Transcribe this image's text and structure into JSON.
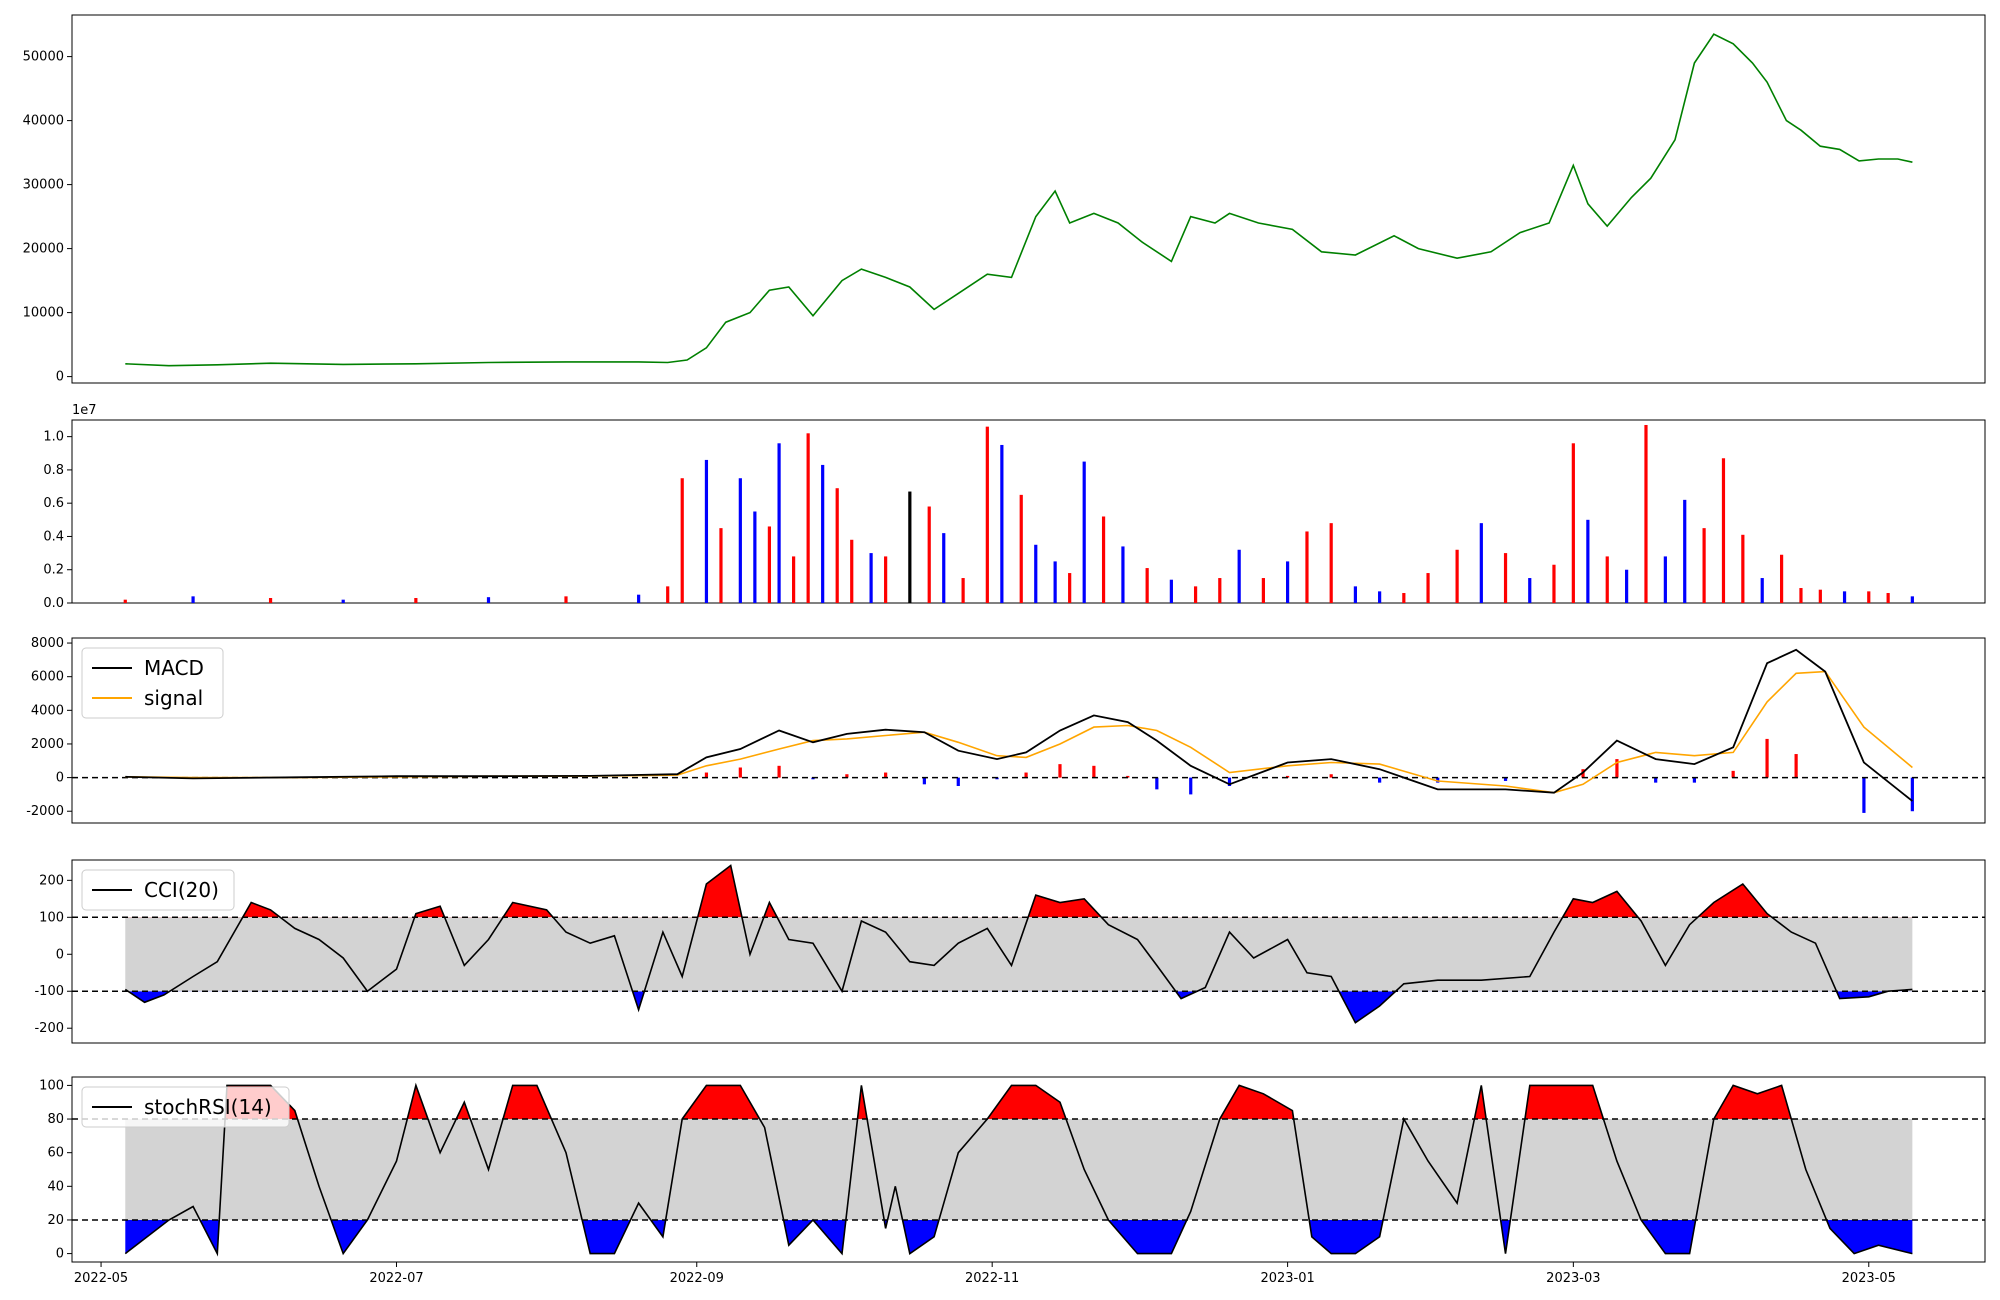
{
  "chart_data": [
    {
      "panel": "price",
      "type": "line",
      "ylim": [
        -1000,
        56500
      ],
      "yticks": [
        0,
        10000,
        20000,
        30000,
        40000,
        50000
      ],
      "colors": {
        "line": "#008000"
      },
      "x": [
        "2022-05-06",
        "2022-05-15",
        "2022-05-25",
        "2022-06-05",
        "2022-06-20",
        "2022-07-05",
        "2022-07-20",
        "2022-08-05",
        "2022-08-20",
        "2022-08-26",
        "2022-08-30",
        "2022-09-03",
        "2022-09-07",
        "2022-09-12",
        "2022-09-16",
        "2022-09-20",
        "2022-09-25",
        "2022-10-01",
        "2022-10-05",
        "2022-10-10",
        "2022-10-15",
        "2022-10-20",
        "2022-10-25",
        "2022-10-31",
        "2022-11-05",
        "2022-11-10",
        "2022-11-14",
        "2022-11-17",
        "2022-11-22",
        "2022-11-27",
        "2022-12-02",
        "2022-12-08",
        "2022-12-12",
        "2022-12-17",
        "2022-12-20",
        "2022-12-26",
        "2023-01-02",
        "2023-01-08",
        "2023-01-15",
        "2023-01-23",
        "2023-01-28",
        "2023-02-05",
        "2023-02-12",
        "2023-02-18",
        "2023-02-24",
        "2023-03-01",
        "2023-03-04",
        "2023-03-08",
        "2023-03-13",
        "2023-03-17",
        "2023-03-22",
        "2023-03-26",
        "2023-03-30",
        "2023-04-03",
        "2023-04-07",
        "2023-04-10",
        "2023-04-14",
        "2023-04-17",
        "2023-04-21",
        "2023-04-25",
        "2023-04-29",
        "2023-05-03",
        "2023-05-07",
        "2023-05-10"
      ],
      "y": [
        2000,
        1700,
        1850,
        2100,
        1900,
        2000,
        2200,
        2300,
        2300,
        2200,
        2600,
        4500,
        8500,
        10000,
        13500,
        14000,
        9500,
        15000,
        16800,
        15500,
        14000,
        10500,
        13000,
        16000,
        15500,
        25000,
        29000,
        24000,
        25500,
        24000,
        21000,
        18000,
        25000,
        24000,
        25500,
        24000,
        23000,
        19500,
        19000,
        22000,
        20000,
        18500,
        19500,
        22500,
        24000,
        33000,
        27000,
        23500,
        28000,
        31000,
        37000,
        49000,
        53500,
        52000,
        49000,
        46000,
        40000,
        38500,
        36000,
        35500,
        33700,
        34000,
        34000,
        33500
      ]
    },
    {
      "panel": "volume",
      "type": "bar",
      "ylim": [
        0,
        11000000
      ],
      "yticks": [
        0,
        2000000,
        4000000,
        6000000,
        8000000,
        10000000
      ],
      "ytick_labels": [
        "0.0",
        "0.2",
        "0.4",
        "0.6",
        "0.8",
        "1.0"
      ],
      "offset_label": "1e7",
      "bar_colors": [
        "red",
        "blue",
        "black"
      ],
      "x": [
        "2022-05-06",
        "2022-05-20",
        "2022-06-05",
        "2022-06-20",
        "2022-07-05",
        "2022-07-20",
        "2022-08-05",
        "2022-08-20",
        "2022-08-26",
        "2022-08-29",
        "2022-09-03",
        "2022-09-06",
        "2022-09-10",
        "2022-09-13",
        "2022-09-16",
        "2022-09-18",
        "2022-09-21",
        "2022-09-24",
        "2022-09-27",
        "2022-09-30",
        "2022-10-03",
        "2022-10-07",
        "2022-10-10",
        "2022-10-15",
        "2022-10-19",
        "2022-10-22",
        "2022-10-26",
        "2022-10-31",
        "2022-11-03",
        "2022-11-07",
        "2022-11-10",
        "2022-11-14",
        "2022-11-17",
        "2022-11-20",
        "2022-11-24",
        "2022-11-28",
        "2022-12-03",
        "2022-12-08",
        "2022-12-13",
        "2022-12-18",
        "2022-12-22",
        "2022-12-27",
        "2023-01-01",
        "2023-01-05",
        "2023-01-10",
        "2023-01-15",
        "2023-01-20",
        "2023-01-25",
        "2023-01-30",
        "2023-02-05",
        "2023-02-10",
        "2023-02-15",
        "2023-02-20",
        "2023-02-25",
        "2023-03-01",
        "2023-03-04",
        "2023-03-08",
        "2023-03-12",
        "2023-03-16",
        "2023-03-20",
        "2023-03-24",
        "2023-03-28",
        "2023-04-01",
        "2023-04-05",
        "2023-04-09",
        "2023-04-13",
        "2023-04-17",
        "2023-04-21",
        "2023-04-26",
        "2023-05-01",
        "2023-05-05",
        "2023-05-10"
      ],
      "y": [
        200000,
        400000,
        300000,
        200000,
        300000,
        350000,
        400000,
        500000,
        1000000,
        7500000,
        8600000,
        4500000,
        7500000,
        5500000,
        4600000,
        9600000,
        2800000,
        10200000,
        8300000,
        6900000,
        3800000,
        3000000,
        2800000,
        6700000,
        5800000,
        4200000,
        1500000,
        10600000,
        9500000,
        6500000,
        3500000,
        2500000,
        1800000,
        8500000,
        5200000,
        3400000,
        2100000,
        1400000,
        1000000,
        1500000,
        3200000,
        1500000,
        2500000,
        4300000,
        4800000,
        1000000,
        700000,
        600000,
        1800000,
        3200000,
        4800000,
        3000000,
        1500000,
        2300000,
        9600000,
        5000000,
        2800000,
        2000000,
        10700000,
        2800000,
        6200000,
        4500000,
        8700000,
        4100000,
        1500000,
        2900000,
        900000,
        800000,
        700000,
        700000,
        600000,
        400000
      ],
      "c": [
        "red",
        "blue",
        "red",
        "blue",
        "red",
        "blue",
        "red",
        "blue",
        "red",
        "red",
        "blue",
        "red",
        "blue",
        "blue",
        "red",
        "blue",
        "red",
        "red",
        "blue",
        "red",
        "red",
        "blue",
        "red",
        "black",
        "red",
        "blue",
        "red",
        "red",
        "blue",
        "red",
        "blue",
        "blue",
        "red",
        "blue",
        "red",
        "blue",
        "red",
        "blue",
        "red",
        "red",
        "blue",
        "red",
        "blue",
        "red",
        "red",
        "blue",
        "blue",
        "red",
        "red",
        "red",
        "blue",
        "red",
        "blue",
        "red",
        "red",
        "blue",
        "red",
        "blue",
        "red",
        "blue",
        "blue",
        "red",
        "red",
        "red",
        "blue",
        "red",
        "red",
        "red",
        "blue",
        "red",
        "red",
        "blue"
      ]
    },
    {
      "panel": "macd",
      "type": "line",
      "ylim": [
        -2700,
        8300
      ],
      "yticks": [
        -2000,
        0,
        2000,
        4000,
        6000,
        8000
      ],
      "legend": [
        "MACD",
        "signal"
      ],
      "legend_loc": "upper left",
      "colors": {
        "macd": "#000000",
        "signal": "#ffa500",
        "hist_pos": "red",
        "hist_neg": "blue"
      },
      "x": [
        "2022-05-06",
        "2022-05-20",
        "2022-06-10",
        "2022-07-01",
        "2022-07-20",
        "2022-08-10",
        "2022-08-28",
        "2022-09-03",
        "2022-09-10",
        "2022-09-18",
        "2022-09-25",
        "2022-10-02",
        "2022-10-10",
        "2022-10-18",
        "2022-10-25",
        "2022-11-02",
        "2022-11-08",
        "2022-11-15",
        "2022-11-22",
        "2022-11-29",
        "2022-12-05",
        "2022-12-12",
        "2022-12-20",
        "2023-01-01",
        "2023-01-10",
        "2023-01-20",
        "2023-02-01",
        "2023-02-15",
        "2023-02-25",
        "2023-03-03",
        "2023-03-10",
        "2023-03-18",
        "2023-03-26",
        "2023-04-03",
        "2023-04-10",
        "2023-04-16",
        "2023-04-22",
        "2023-04-30",
        "2023-05-10"
      ],
      "macd": [
        50,
        -50,
        20,
        80,
        80,
        100,
        200,
        1200,
        1700,
        2800,
        2100,
        2600,
        2850,
        2700,
        1600,
        1100,
        1500,
        2800,
        3700,
        3300,
        2200,
        700,
        -400,
        900,
        1100,
        500,
        -700,
        -700,
        -900,
        300,
        2200,
        1100,
        800,
        1800,
        6800,
        7600,
        6300,
        900,
        -1400
      ],
      "signal": [
        50,
        0,
        0,
        50,
        80,
        90,
        150,
        700,
        1100,
        1700,
        2200,
        2300,
        2500,
        2700,
        2100,
        1300,
        1200,
        2000,
        3000,
        3100,
        2800,
        1800,
        300,
        700,
        900,
        800,
        -200,
        -500,
        -900,
        -400,
        900,
        1500,
        1300,
        1500,
        4500,
        6200,
        6300,
        3000,
        600
      ],
      "hist": [
        0,
        0,
        0,
        0,
        0,
        0,
        0,
        300,
        600,
        700,
        -100,
        200,
        300,
        -400,
        -500,
        -100,
        300,
        800,
        700,
        100,
        -700,
        -1000,
        -500,
        100,
        200,
        -300,
        -300,
        -200,
        0,
        500,
        1100,
        -300,
        -300,
        400,
        2300,
        1400,
        0,
        -2100,
        -2000
      ]
    },
    {
      "panel": "cci",
      "type": "line",
      "ylim": [
        -240,
        255
      ],
      "yticks": [
        -200,
        -100,
        0,
        100,
        200
      ],
      "legend": [
        "CCI(20)"
      ],
      "legend_loc": "upper left",
      "thresholds": [
        100,
        -100
      ],
      "colors": {
        "line": "#000000",
        "upper_fill": "red",
        "lower_fill": "blue",
        "band": "#d3d3d3"
      },
      "x": [
        "2022-05-06",
        "2022-05-10",
        "2022-05-14",
        "2022-05-20",
        "2022-05-25",
        "2022-06-01",
        "2022-06-05",
        "2022-06-10",
        "2022-06-15",
        "2022-06-20",
        "2022-06-25",
        "2022-07-01",
        "2022-07-05",
        "2022-07-10",
        "2022-07-15",
        "2022-07-20",
        "2022-07-25",
        "2022-08-01",
        "2022-08-05",
        "2022-08-10",
        "2022-08-15",
        "2022-08-20",
        "2022-08-25",
        "2022-08-29",
        "2022-09-03",
        "2022-09-08",
        "2022-09-12",
        "2022-09-16",
        "2022-09-20",
        "2022-09-25",
        "2022-10-01",
        "2022-10-05",
        "2022-10-10",
        "2022-10-15",
        "2022-10-20",
        "2022-10-25",
        "2022-10-31",
        "2022-11-05",
        "2022-11-10",
        "2022-11-15",
        "2022-11-20",
        "2022-11-25",
        "2022-12-01",
        "2022-12-05",
        "2022-12-10",
        "2022-12-15",
        "2022-12-20",
        "2022-12-25",
        "2023-01-01",
        "2023-01-05",
        "2023-01-10",
        "2023-01-15",
        "2023-01-20",
        "2023-01-25",
        "2023-02-01",
        "2023-02-10",
        "2023-02-20",
        "2023-02-25",
        "2023-03-01",
        "2023-03-05",
        "2023-03-10",
        "2023-03-15",
        "2023-03-20",
        "2023-03-25",
        "2023-03-30",
        "2023-04-05",
        "2023-04-10",
        "2023-04-15",
        "2023-04-20",
        "2023-04-25",
        "2023-05-01",
        "2023-05-05",
        "2023-05-10"
      ],
      "y": [
        -95,
        -130,
        -110,
        -60,
        -20,
        140,
        120,
        70,
        40,
        -10,
        -100,
        -40,
        110,
        130,
        -30,
        40,
        140,
        120,
        60,
        30,
        50,
        -150,
        60,
        -60,
        190,
        240,
        0,
        140,
        40,
        30,
        -100,
        90,
        60,
        -20,
        -30,
        30,
        70,
        -30,
        160,
        140,
        150,
        80,
        40,
        -30,
        -120,
        -90,
        60,
        -10,
        40,
        -50,
        -60,
        -185,
        -140,
        -80,
        -70,
        -70,
        -60,
        60,
        150,
        140,
        170,
        90,
        -30,
        80,
        140,
        190,
        110,
        60,
        30,
        -120,
        -115,
        -100,
        -95
      ]
    },
    {
      "panel": "stochrsi",
      "type": "line",
      "ylim": [
        -5,
        105
      ],
      "yticks": [
        0,
        20,
        40,
        60,
        80,
        100
      ],
      "xticks": [
        "2022-05",
        "2022-07",
        "2022-09",
        "2022-11",
        "2023-01",
        "2023-03",
        "2023-05"
      ],
      "legend": [
        "stochRSI(14)"
      ],
      "legend_loc": "upper left",
      "thresholds": [
        80,
        20
      ],
      "colors": {
        "line": "#000000",
        "upper_fill": "red",
        "lower_fill": "blue",
        "band": "#d3d3d3"
      },
      "x": [
        "2022-05-06",
        "2022-05-15",
        "2022-05-20",
        "2022-05-25",
        "2022-05-27",
        "2022-06-05",
        "2022-06-10",
        "2022-06-15",
        "2022-06-20",
        "2022-06-25",
        "2022-07-01",
        "2022-07-05",
        "2022-07-10",
        "2022-07-15",
        "2022-07-20",
        "2022-07-25",
        "2022-07-30",
        "2022-08-05",
        "2022-08-10",
        "2022-08-15",
        "2022-08-20",
        "2022-08-25",
        "2022-08-29",
        "2022-09-03",
        "2022-09-10",
        "2022-09-15",
        "2022-09-20",
        "2022-09-25",
        "2022-10-01",
        "2022-10-05",
        "2022-10-10",
        "2022-10-12",
        "2022-10-15",
        "2022-10-20",
        "2022-10-25",
        "2022-10-31",
        "2022-11-05",
        "2022-11-10",
        "2022-11-15",
        "2022-11-20",
        "2022-11-25",
        "2022-12-01",
        "2022-12-08",
        "2022-12-12",
        "2022-12-18",
        "2022-12-22",
        "2022-12-27",
        "2023-01-02",
        "2023-01-06",
        "2023-01-10",
        "2023-01-15",
        "2023-01-20",
        "2023-01-25",
        "2023-01-30",
        "2023-02-05",
        "2023-02-10",
        "2023-02-15",
        "2023-02-20",
        "2023-02-25",
        "2023-03-01",
        "2023-03-05",
        "2023-03-10",
        "2023-03-15",
        "2023-03-20",
        "2023-03-25",
        "2023-03-30",
        "2023-04-03",
        "2023-04-08",
        "2023-04-13",
        "2023-04-18",
        "2023-04-23",
        "2023-04-28",
        "2023-05-03",
        "2023-05-10"
      ],
      "y": [
        0,
        20,
        28,
        0,
        100,
        100,
        85,
        40,
        0,
        20,
        55,
        100,
        60,
        90,
        50,
        100,
        100,
        60,
        0,
        0,
        30,
        10,
        80,
        100,
        100,
        75,
        5,
        20,
        0,
        100,
        15,
        40,
        0,
        10,
        60,
        80,
        100,
        100,
        90,
        50,
        20,
        0,
        0,
        25,
        80,
        100,
        95,
        85,
        10,
        0,
        0,
        10,
        80,
        55,
        30,
        100,
        0,
        100,
        100,
        100,
        100,
        55,
        20,
        0,
        0,
        80,
        100,
        95,
        100,
        50,
        15,
        0,
        5,
        0
      ]
    }
  ]
}
